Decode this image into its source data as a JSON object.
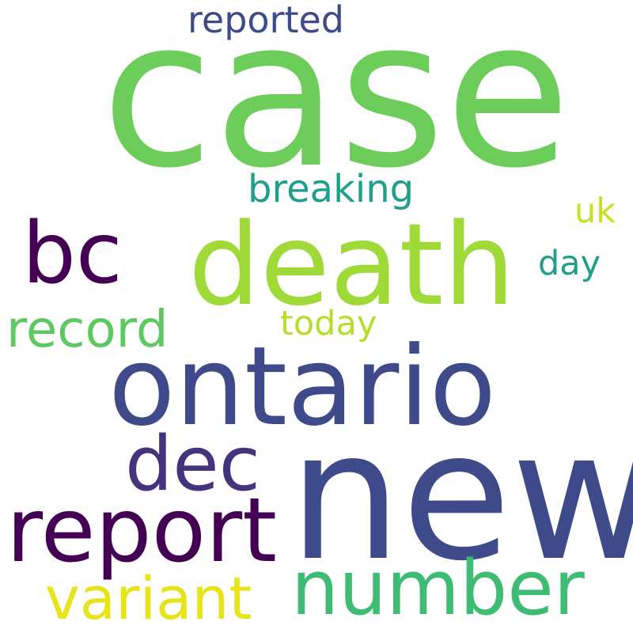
{
  "words": [
    {
      "text": "case",
      "color": "#6ccd5a"
    },
    {
      "text": "new",
      "color": "#3e4a89"
    },
    {
      "text": "ontario",
      "color": "#3e4a89"
    },
    {
      "text": "death",
      "color": "#a0da39"
    },
    {
      "text": "report",
      "color": "#440154"
    },
    {
      "text": "number",
      "color": "#3fbc73"
    },
    {
      "text": "bc",
      "color": "#440154"
    },
    {
      "text": "dec",
      "color": "#46337e"
    },
    {
      "text": "variant",
      "color": "#e7e419"
    },
    {
      "text": "record",
      "color": "#5ec962"
    },
    {
      "text": "breaking",
      "color": "#1f9e89"
    },
    {
      "text": "reported",
      "color": "#3e4a89"
    },
    {
      "text": "today",
      "color": "#b5de2b"
    },
    {
      "text": "day",
      "color": "#1f9e89"
    },
    {
      "text": "uk",
      "color": "#c8e020"
    }
  ]
}
